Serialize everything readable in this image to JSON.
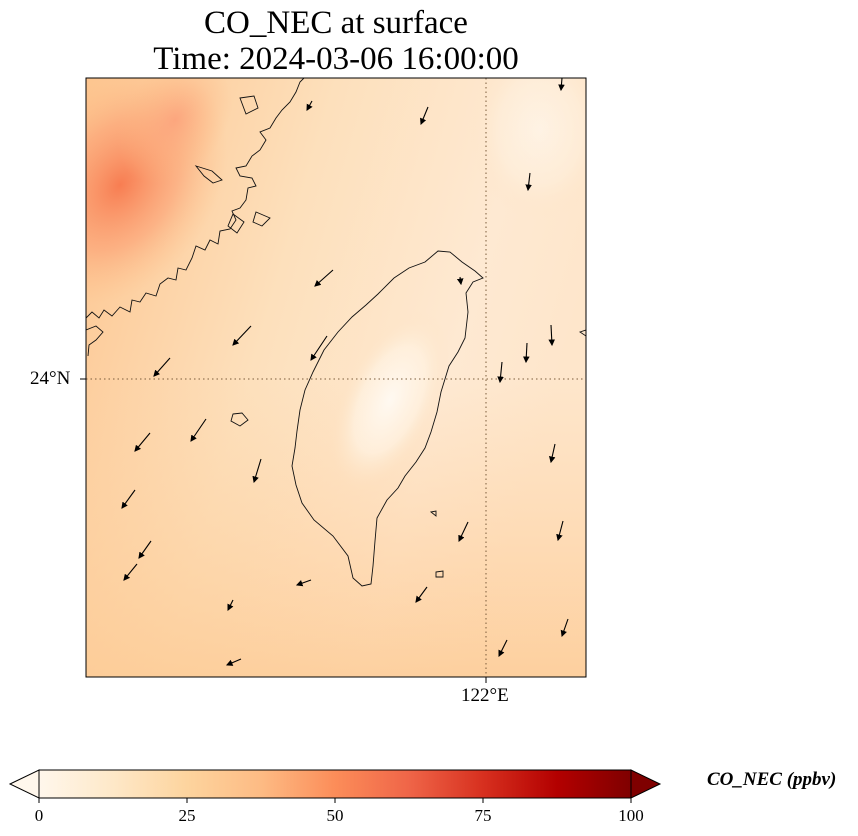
{
  "title": {
    "line1": "CO_NEC at surface",
    "line2": "Time: 2024-03-06 16:00:00"
  },
  "map": {
    "lat_tick": "24°N",
    "lon_tick": "122°E",
    "extent": {
      "lon": [
        119.25,
        122.7
      ],
      "lat": [
        21.95,
        26.05
      ]
    },
    "gridlines": {
      "lon": 122.0,
      "lat": 24.0,
      "style": "dotted"
    },
    "field_range_ppbv": [
      12,
      45
    ]
  },
  "colorbar": {
    "label": "CO_NEC (ppbv)",
    "ticks": [
      "0",
      "25",
      "50",
      "75",
      "100"
    ],
    "vmin": 0,
    "vmax": 100,
    "colormap": "OrRd",
    "colors": [
      "#fff7ec",
      "#fee8c8",
      "#fdd49e",
      "#fdbb84",
      "#fc8d59",
      "#ef6548",
      "#d7301f",
      "#b30000",
      "#7f0000"
    ],
    "extend": "both"
  }
}
